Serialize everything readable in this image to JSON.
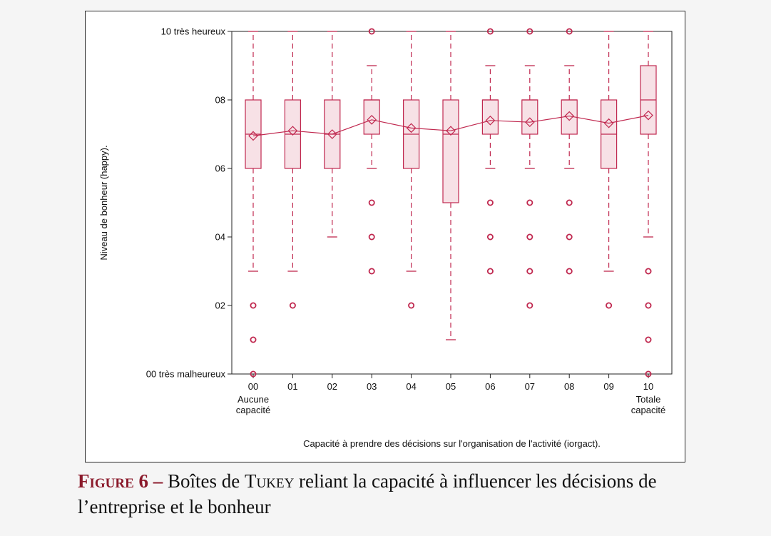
{
  "chart_data": {
    "type": "box",
    "xlabel": "Capacité à prendre des décisions sur l'organisation de l'activité (iorgact).",
    "ylabel": "Niveau de bonheur (happy).",
    "ylim": [
      0,
      10
    ],
    "y_ticks": [
      {
        "value": 0,
        "label": "00 très malheureux"
      },
      {
        "value": 2,
        "label": "02"
      },
      {
        "value": 4,
        "label": "04"
      },
      {
        "value": 6,
        "label": "06"
      },
      {
        "value": 8,
        "label": "08"
      },
      {
        "value": 10,
        "label": "10 très heureux"
      }
    ],
    "categories": [
      {
        "label": "00",
        "sub": [
          "Aucune",
          "capacité"
        ]
      },
      {
        "label": "01",
        "sub": []
      },
      {
        "label": "02",
        "sub": []
      },
      {
        "label": "03",
        "sub": []
      },
      {
        "label": "04",
        "sub": []
      },
      {
        "label": "05",
        "sub": []
      },
      {
        "label": "06",
        "sub": []
      },
      {
        "label": "07",
        "sub": []
      },
      {
        "label": "08",
        "sub": []
      },
      {
        "label": "09",
        "sub": []
      },
      {
        "label": "10",
        "sub": [
          "Totale",
          "capacité"
        ]
      }
    ],
    "boxes": [
      {
        "min": 3,
        "q1": 6,
        "median": 7,
        "q3": 8,
        "max": 10,
        "mean": 6.95,
        "outliers": [
          2,
          1,
          0
        ]
      },
      {
        "min": 3,
        "q1": 6,
        "median": 7,
        "q3": 8,
        "max": 10,
        "mean": 7.1,
        "outliers": [
          2
        ]
      },
      {
        "min": 4,
        "q1": 6,
        "median": 7,
        "q3": 8,
        "max": 10,
        "mean": 7.0,
        "outliers": []
      },
      {
        "min": 6,
        "q1": 7,
        "median": 8,
        "q3": 8,
        "max": 9,
        "mean": 7.42,
        "outliers": [
          10,
          5,
          4,
          3
        ]
      },
      {
        "min": 3,
        "q1": 6,
        "median": 7,
        "q3": 8,
        "max": 10,
        "mean": 7.18,
        "outliers": [
          2
        ]
      },
      {
        "min": 1,
        "q1": 5,
        "median": 7,
        "q3": 8,
        "max": 10,
        "mean": 7.1,
        "outliers": []
      },
      {
        "min": 6,
        "q1": 7,
        "median": 8,
        "q3": 8,
        "max": 9,
        "mean": 7.4,
        "outliers": [
          10,
          5,
          4,
          3
        ]
      },
      {
        "min": 6,
        "q1": 7,
        "median": 8,
        "q3": 8,
        "max": 9,
        "mean": 7.35,
        "outliers": [
          10,
          5,
          4,
          3,
          2
        ]
      },
      {
        "min": 6,
        "q1": 7,
        "median": 8,
        "q3": 8,
        "max": 9,
        "mean": 7.53,
        "outliers": [
          10,
          5,
          4,
          3
        ]
      },
      {
        "min": 3,
        "q1": 6,
        "median": 7,
        "q3": 8,
        "max": 10,
        "mean": 7.32,
        "outliers": [
          2
        ]
      },
      {
        "min": 4,
        "q1": 7,
        "median": 8,
        "q3": 9,
        "max": 10,
        "mean": 7.55,
        "outliers": [
          3,
          2,
          1,
          0
        ]
      }
    ],
    "colors": {
      "stroke": "#c0284f",
      "fill": "#f7e1e6",
      "mean_line": "#c0284f"
    }
  },
  "caption": {
    "label": "Figure 6 –",
    "text_before": " Boîtes de ",
    "tukey": "Tukey",
    "text_after": " reliant la capacité à influencer les décisions de l’entreprise et le bonheur"
  }
}
